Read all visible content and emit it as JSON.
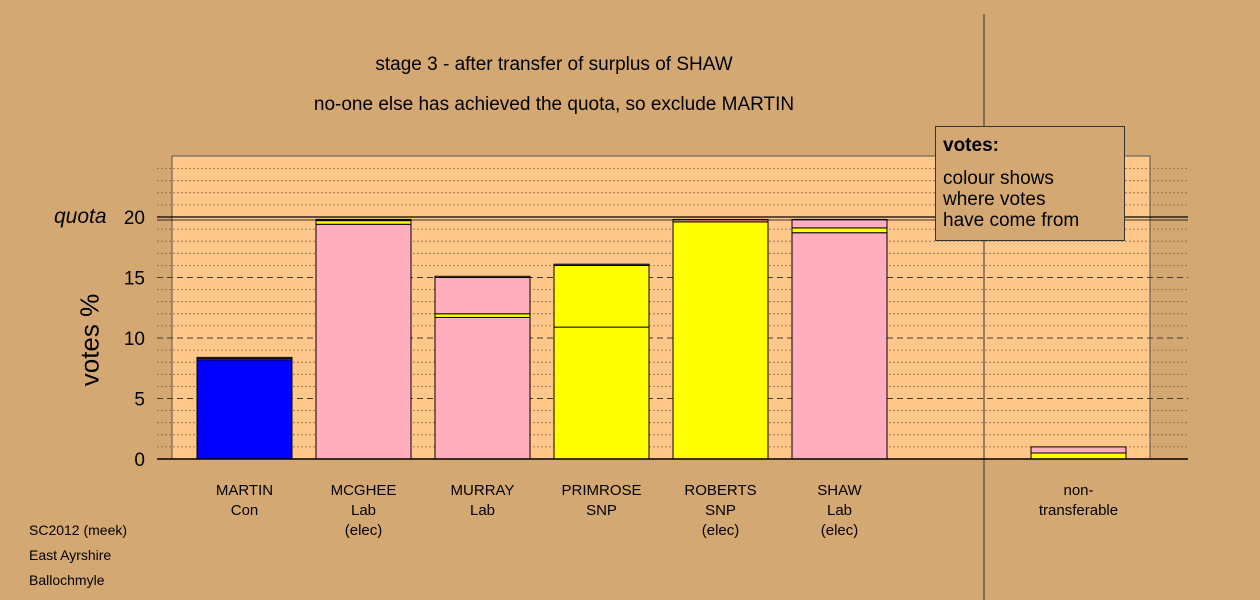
{
  "header": {
    "title": "stage 3 - after transfer of surplus of SHAW",
    "subtitle": "no-one else has achieved the quota, so exclude MARTIN"
  },
  "legend": {
    "heading": "votes:",
    "body": "colour shows\nwhere votes\nhave come from"
  },
  "footer": {
    "line1": "SC2012 (meek)",
    "line2": "East Ayrshire",
    "line3": "Ballochmyle"
  },
  "colors": {
    "background": "#d4a872",
    "plot_area": "#ffc88a",
    "con": "#0000ff",
    "lab": "#ffaec0",
    "snp": "#ffff00",
    "outline": "#000000"
  },
  "chart_data": {
    "type": "bar",
    "stacked": true,
    "title": "stage 3 - after transfer of surplus of SHAW",
    "subtitle": "no-one else has achieved the quota, so exclude MARTIN",
    "ylabel": "votes %",
    "ylim": [
      0,
      25
    ],
    "yticks": [
      0,
      5,
      10,
      15,
      20
    ],
    "quota": 20,
    "quota_label": "quota",
    "grid": "dashed horizontal",
    "candidates": [
      {
        "name": "MARTIN",
        "party": "Con",
        "status": "",
        "segments": [
          {
            "source": "con",
            "value": 8.2
          },
          {
            "source": "snp",
            "value": 0.1
          },
          {
            "source": "lab",
            "value": 0.1
          }
        ]
      },
      {
        "name": "MCGHEE",
        "party": "Lab",
        "status": "(elec)",
        "segments": [
          {
            "source": "lab",
            "value": 19.4
          },
          {
            "source": "snp",
            "value": 0.3
          },
          {
            "source": "lab",
            "value": 0.1
          }
        ]
      },
      {
        "name": "MURRAY",
        "party": "Lab",
        "status": "",
        "segments": [
          {
            "source": "lab",
            "value": 11.7
          },
          {
            "source": "snp",
            "value": 0.3
          },
          {
            "source": "lab",
            "value": 3.0
          },
          {
            "source": "snp",
            "value": 0.1
          }
        ]
      },
      {
        "name": "PRIMROSE",
        "party": "SNP",
        "status": "",
        "segments": [
          {
            "source": "snp",
            "value": 10.9
          },
          {
            "source": "snp",
            "value": 5.1
          },
          {
            "source": "lab",
            "value": 0.1
          }
        ]
      },
      {
        "name": "ROBERTS",
        "party": "SNP",
        "status": "(elec)",
        "segments": [
          {
            "source": "snp",
            "value": 19.6
          },
          {
            "source": "lab",
            "value": 0.2
          }
        ]
      },
      {
        "name": "SHAW",
        "party": "Lab",
        "status": "(elec)",
        "segments": [
          {
            "source": "lab",
            "value": 18.7
          },
          {
            "source": "snp",
            "value": 0.4
          },
          {
            "source": "lab",
            "value": 0.7
          }
        ]
      }
    ],
    "non_transferable": {
      "label": "non-\ntransferable",
      "segments": [
        {
          "source": "snp",
          "value": 0.5
        },
        {
          "source": "lab",
          "value": 0.5
        }
      ]
    }
  }
}
